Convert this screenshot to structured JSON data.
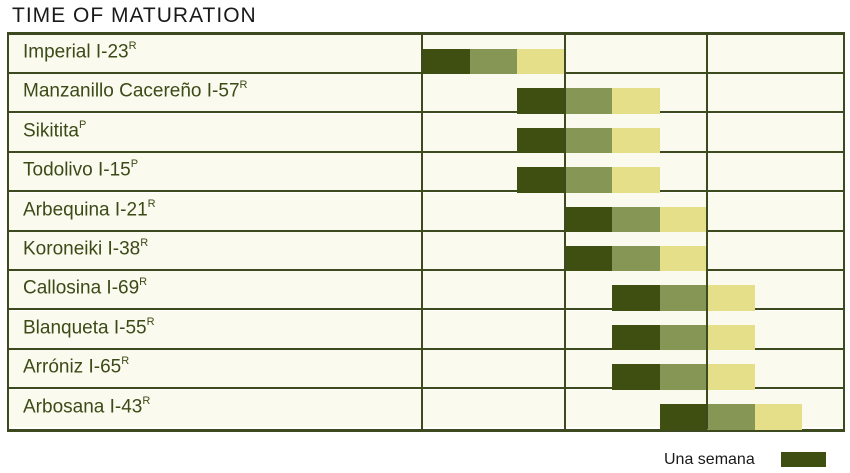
{
  "chart_data": {
    "type": "bar",
    "title": "TIME OF MATURATION",
    "categories": [
      {
        "name": "Imperial I-23",
        "sup": "R"
      },
      {
        "name": "Manzanillo Cacereño I-57",
        "sup": "R"
      },
      {
        "name": "Sikitita",
        "sup": "P"
      },
      {
        "name": "Todolivo I-15",
        "sup": "P"
      },
      {
        "name": "Arbequina I-21",
        "sup": "R"
      },
      {
        "name": "Koroneiki I-38",
        "sup": "R"
      },
      {
        "name": "Callosina I-69",
        "sup": "R"
      },
      {
        "name": "Blanqueta I-55",
        "sup": "R"
      },
      {
        "name": "Arróniz I-65",
        "sup": "R"
      },
      {
        "name": "Arbosana I-43",
        "sup": "R"
      }
    ],
    "start_week": [
      0,
      2,
      2,
      2,
      3,
      3,
      4,
      4,
      4,
      5
    ],
    "segment_weeks": 1,
    "segments": 3,
    "x_range_weeks": [
      0,
      8.7
    ],
    "segment_colors": [
      "#3f4f12",
      "#869655",
      "#e5df8a"
    ],
    "legend": {
      "label": "Una semana",
      "color": "#3f4f12"
    }
  }
}
